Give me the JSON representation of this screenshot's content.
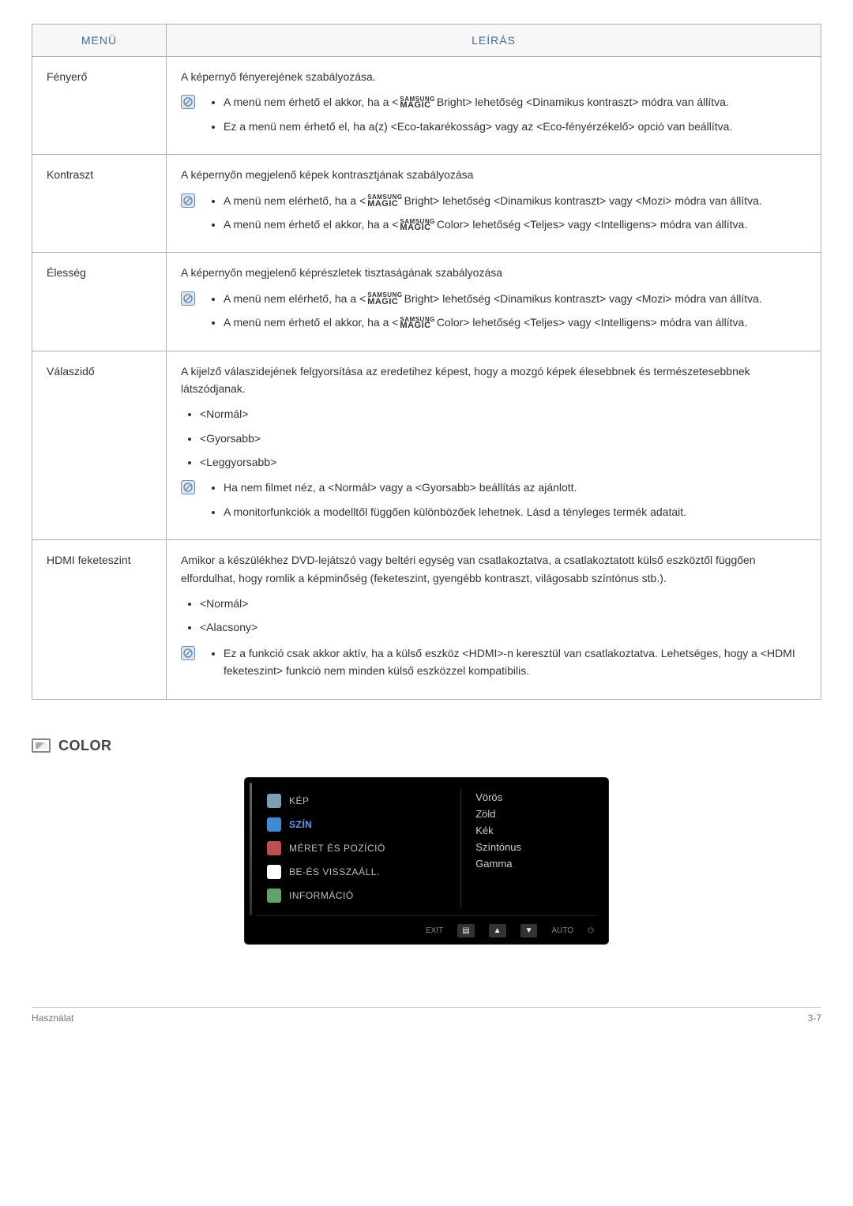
{
  "colors": {
    "table_border": "#b0b0b0",
    "table_header_bg": "#f7f7f7",
    "table_header_text": "#3a6ea5",
    "body_text": "#333333",
    "note_icon_bg": "#dce6ef",
    "note_icon_symbol": "#6a8fb5",
    "osd_bg": "#000000",
    "osd_text": "#dddddd",
    "osd_active": "#4aa3ff",
    "osd_item_text": "#bfbfbf",
    "osd_footer_text": "#888888",
    "page_border": "#cccccc",
    "footer_text": "#777777"
  },
  "table": {
    "header_menu": "MENÜ",
    "header_desc": "LEÍRÁS",
    "rows": [
      {
        "menu": "Fényerő",
        "intro": "A képernyő fényerejének szabályozása.",
        "plain_items": [],
        "note_items": [
          {
            "pre": "A menü nem érhető el akkor, ha a <",
            "magic": "Bright",
            "post": "> lehetőség <Dinamikus kontraszt> módra van állítva."
          },
          {
            "pre": "Ez a menü nem érhető el, ha a(z) <Eco-takarékosság> vagy az <Eco-fényérzékelő> opció van beállítva.",
            "magic": null,
            "post": ""
          }
        ]
      },
      {
        "menu": "Kontraszt",
        "intro": "A képernyőn megjelenő képek kontrasztjának szabályozása",
        "plain_items": [],
        "note_items": [
          {
            "pre": "A menü nem elérhető, ha a <",
            "magic": "Bright",
            "post": "> lehetőség <Dinamikus kontraszt> vagy <Mozi> módra van állítva."
          },
          {
            "pre": "A menü nem érhető el akkor, ha a <",
            "magic": "Color",
            "post": "> lehetőség <Teljes> vagy <Intelligens> módra van állítva."
          }
        ]
      },
      {
        "menu": "Élesség",
        "intro": "A képernyőn megjelenő képrészletek tisztaságának szabályozása",
        "plain_items": [],
        "note_items": [
          {
            "pre": "A menü nem elérhető, ha a <",
            "magic": "Bright",
            "post": "> lehetőség <Dinamikus kontraszt> vagy <Mozi> módra van állítva."
          },
          {
            "pre": "A menü nem érhető el akkor, ha a <",
            "magic": "Color",
            "post": "> lehetőség <Teljes> vagy <Intelligens> módra van állítva."
          }
        ]
      },
      {
        "menu": "Válaszidő",
        "intro": "A kijelző válaszidejének felgyorsítása az eredetihez képest, hogy a mozgó képek élesebbnek és természetesebbnek látszódjanak.",
        "plain_items": [
          "<Normál>",
          "<Gyorsabb>",
          "<Leggyorsabb>"
        ],
        "note_items": [
          {
            "pre": "Ha nem filmet néz, a <Normál> vagy a <Gyorsabb> beállítás az ajánlott.",
            "magic": null,
            "post": ""
          },
          {
            "pre": "A monitorfunkciók a modelltől függően különbözőek lehetnek. Lásd a tényleges termék adatait.",
            "magic": null,
            "post": ""
          }
        ]
      },
      {
        "menu": "HDMI feketeszint",
        "intro": "Amikor a készülékhez DVD-lejátszó vagy beltéri egység van csatlakoztatva, a csatlakoztatott külső eszköztől függően elfordulhat, hogy romlik a képminőség (feketeszint, gyengébb kontraszt, világosabb színtónus stb.).",
        "plain_items": [
          "<Normál>",
          "<Alacsony>"
        ],
        "note_items": [
          {
            "pre": "Ez a funkció csak akkor aktív, ha a külső eszköz <HDMI>-n keresztül van csatlakoztatva. Lehetséges, hogy a <HDMI feketeszint> funkció nem minden külső eszközzel kompatibilis.",
            "magic": null,
            "post": ""
          }
        ]
      }
    ]
  },
  "samsung_magic": {
    "top": "SAMSUNG",
    "bottom": "MAGIC"
  },
  "section_color_heading": "COLOR",
  "osd": {
    "left_items": [
      {
        "label": "KÉP",
        "active": false,
        "icon_color": "#7aa0b8"
      },
      {
        "label": "SZÍN",
        "active": true,
        "icon_color": "#3a8dd6"
      },
      {
        "label": "MÉRET ÉS POZÍCIÓ",
        "active": false,
        "icon_color": "#c05050"
      },
      {
        "label": "BE-ÉS VISSZAÁLL.",
        "active": false,
        "icon_color": "#ffffff"
      },
      {
        "label": "INFORMÁCIÓ",
        "active": false,
        "icon_color": "#5fa36b"
      }
    ],
    "right_items": [
      "Vörös",
      "Zöld",
      "Kék",
      "Színtónus",
      "Gamma"
    ],
    "footer": {
      "exit": "EXIT",
      "auto": "AUTO",
      "power_symbol": "⏻"
    }
  },
  "footer": {
    "left": "Használat",
    "right": "3-7"
  }
}
